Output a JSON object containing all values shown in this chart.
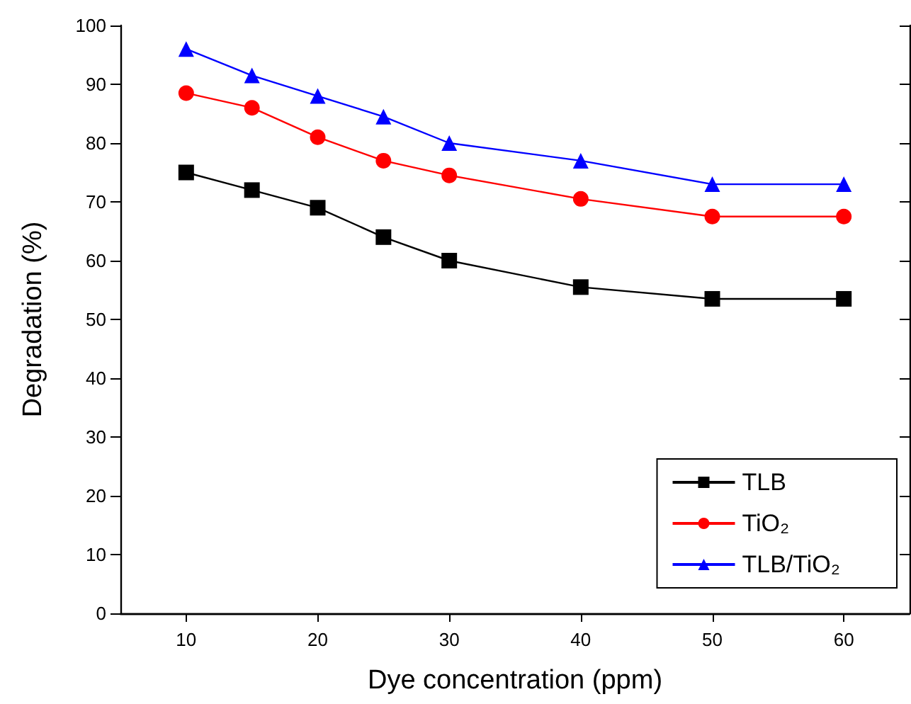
{
  "chart_data": {
    "type": "line",
    "xlabel": "Dye concentration (ppm)",
    "ylabel": "Degradation (%)",
    "x": [
      10,
      15,
      20,
      25,
      30,
      40,
      50,
      60
    ],
    "series": [
      {
        "name": "TLB",
        "color": "#000000",
        "marker": "square",
        "values": [
          75,
          72,
          69,
          64,
          60,
          55.5,
          53.5,
          53.5
        ]
      },
      {
        "name": "TiO₂",
        "color": "#ff0000",
        "marker": "circle",
        "values": [
          88.5,
          86,
          81,
          77,
          74.5,
          70.5,
          67.5,
          67.5
        ]
      },
      {
        "name": "TLB/TiO₂",
        "color": "#0000ff",
        "marker": "triangle",
        "values": [
          96,
          91.5,
          88,
          84.5,
          80,
          77,
          73,
          73
        ]
      }
    ],
    "xlim": [
      5,
      65
    ],
    "xticks": [
      10,
      20,
      30,
      40,
      50,
      60
    ],
    "ylim": [
      0,
      100
    ],
    "yticks": [
      0,
      10,
      20,
      30,
      40,
      50,
      60,
      70,
      80,
      90,
      100
    ],
    "grid": false,
    "legend": "bottom right"
  }
}
